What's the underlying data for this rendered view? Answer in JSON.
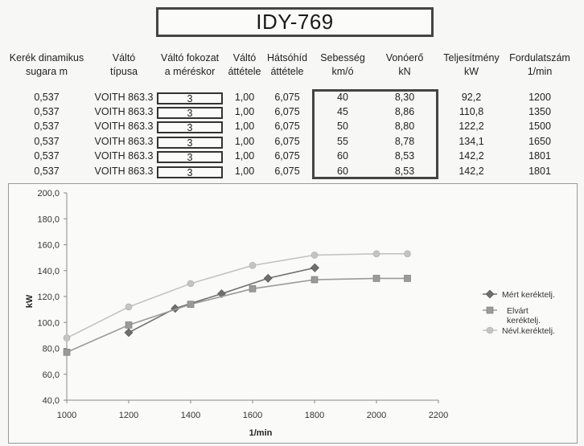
{
  "title": "IDY-769",
  "table": {
    "headers": [
      {
        "line1": "Kerék dinamikus",
        "line2": "sugara        m"
      },
      {
        "line1": "Váltó",
        "line2": "típusa"
      },
      {
        "line1": "Váltó fokozat",
        "line2": "a méréskor"
      },
      {
        "line1": "Váltó",
        "line2": "áttétele"
      },
      {
        "line1": "Hátsóhíd",
        "line2": "áttétele"
      },
      {
        "line1": "Sebesség",
        "line2": "km/ó"
      },
      {
        "line1": "Vonóerő",
        "line2": "kN"
      },
      {
        "line1": "Teljesítmény",
        "line2": "kW"
      },
      {
        "line1": "Fordulatszám",
        "line2": "1/min"
      }
    ],
    "rows": [
      [
        "0,537",
        "VOITH 863.3",
        "3",
        "1,00",
        "6,075",
        "40",
        "8,30",
        "92,2",
        "1200"
      ],
      [
        "0,537",
        "VOITH 863.3",
        "3",
        "1,00",
        "6,075",
        "45",
        "8,86",
        "110,8",
        "1350"
      ],
      [
        "0,537",
        "VOITH 863.3",
        "3",
        "1,00",
        "6,075",
        "50",
        "8,80",
        "122,2",
        "1500"
      ],
      [
        "0,537",
        "VOITH 863.3",
        "3",
        "1,00",
        "6,075",
        "55",
        "8,78",
        "134,1",
        "1650"
      ],
      [
        "0,537",
        "VOITH 863.3",
        "3",
        "1,00",
        "6,075",
        "60",
        "8,53",
        "142,2",
        "1801"
      ],
      [
        "0,537",
        "VOITH 863.3",
        "3",
        "1,00",
        "6,075",
        "60",
        "8,53",
        "142,2",
        "1801"
      ]
    ]
  },
  "chart_data": {
    "type": "line",
    "xlabel": "1/min",
    "ylabel": "kW",
    "xlim": [
      1000,
      2200
    ],
    "ylim": [
      40,
      200
    ],
    "xticks": [
      1000,
      1200,
      1400,
      1600,
      1800,
      2000,
      2200
    ],
    "yticks": [
      40,
      60,
      80,
      100,
      120,
      140,
      160,
      180,
      200
    ],
    "ytick_labels": [
      "40,0",
      "60,0",
      "80,0",
      "100,0",
      "120,0",
      "140,0",
      "160,0",
      "180,0",
      "200,0"
    ],
    "grid": false,
    "legend_position": "right",
    "series": [
      {
        "name": "Mért keréktelj.",
        "marker": "diamond",
        "color": "#6e6e6e",
        "x": [
          1200,
          1350,
          1500,
          1650,
          1801,
          1801
        ],
        "y": [
          92.2,
          110.8,
          122.2,
          134.1,
          142.2,
          142.2
        ]
      },
      {
        "name": "Elvárt keréktelj.",
        "marker": "square",
        "color": "#9a9a9a",
        "x": [
          1000,
          1200,
          1400,
          1600,
          1800,
          2000,
          2100
        ],
        "y": [
          77,
          98,
          114,
          126,
          133,
          134,
          134
        ]
      },
      {
        "name": "Névl.keréktelj.",
        "marker": "circle",
        "color": "#c4c4c4",
        "x": [
          1000,
          1200,
          1400,
          1600,
          1800,
          2000,
          2100
        ],
        "y": [
          88,
          112,
          130,
          144,
          152,
          153,
          153
        ]
      }
    ]
  }
}
